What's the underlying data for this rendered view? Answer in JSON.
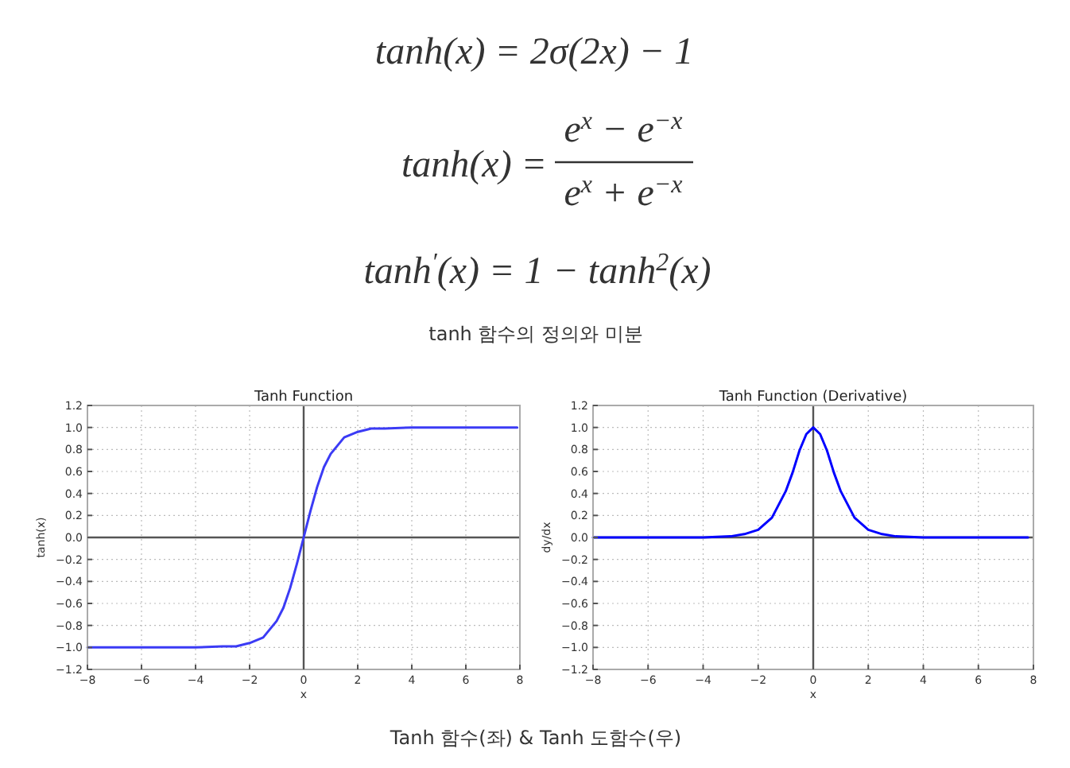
{
  "chart_data": [
    {
      "type": "other",
      "annotations": [
        "tanh(x) = 2σ(2x) − 1",
        "tanh(x) =",
        "e$^{x}$ − e$^{−x}$",
        "e$^{x}$ + e$^{−x}$",
        "tanh$^{′}$(x) = 1 − tanh$^{2}$(x)",
        "tanh 함수의 정의와 미분",
        "Tanh 함수(좌) & Tanh 도함수(우)"
      ]
    },
    {
      "type": "line",
      "title": "Tanh Function",
      "xlabel": "x",
      "ylabel": "tanh(x)",
      "x": [
        -8,
        -6,
        -4,
        -3,
        -2.5,
        -2,
        -1.5,
        -1,
        -0.75,
        -0.5,
        -0.25,
        0,
        0.25,
        0.5,
        0.75,
        1,
        1.5,
        2,
        2.5,
        3,
        4,
        6,
        7.9
      ],
      "series": [
        {
          "color": "#3b3bf5",
          "values": [
            -1,
            -1,
            -1,
            -0.99,
            -0.99,
            -0.96,
            -0.91,
            -0.76,
            -0.64,
            -0.46,
            -0.24,
            0,
            0.24,
            0.46,
            0.64,
            0.76,
            0.91,
            0.96,
            0.99,
            0.99,
            1,
            1,
            1
          ]
        }
      ],
      "xlim": [
        -8,
        8
      ],
      "ylim": [
        -1.2,
        1.2
      ],
      "xticks": [
        {
          "value": -8,
          "label": "−8"
        },
        {
          "value": -6,
          "label": "−6"
        },
        {
          "value": -4,
          "label": "−4"
        },
        {
          "value": -2,
          "label": "−2"
        },
        0,
        2,
        4,
        6,
        8
      ],
      "yticks": [
        {
          "value": -1.2,
          "label": "−1.2"
        },
        {
          "value": -1,
          "label": "−1.0"
        },
        {
          "value": -0.8,
          "label": "−0.8"
        },
        {
          "value": -0.6,
          "label": "−0.6"
        },
        {
          "value": -0.4,
          "label": "−0.4"
        },
        {
          "value": -0.2,
          "label": "−0.2"
        },
        {
          "value": 0,
          "label": "0.0"
        },
        0.2,
        0.4,
        0.6,
        0.8,
        {
          "value": 1,
          "label": "1.0"
        },
        1.2
      ],
      "grid": true
    },
    {
      "type": "line",
      "title": "Tanh Function (Derivative)",
      "xlabel": "x",
      "ylabel": "dy/dx",
      "x": [
        -8,
        -6,
        -4,
        -3,
        -2.5,
        -2,
        -1.5,
        -1,
        -0.75,
        -0.5,
        -0.25,
        0,
        0.25,
        0.5,
        0.75,
        1,
        1.5,
        2,
        2.5,
        3,
        4,
        6,
        7.8
      ],
      "series": [
        {
          "color": "#0000ff",
          "values": [
            0,
            0,
            0,
            0.01,
            0.03,
            0.07,
            0.18,
            0.42,
            0.59,
            0.79,
            0.94,
            1,
            0.94,
            0.79,
            0.59,
            0.42,
            0.18,
            0.07,
            0.03,
            0.01,
            0,
            0,
            0
          ]
        }
      ],
      "xlim": [
        -8,
        8
      ],
      "ylim": [
        -1.2,
        1.2
      ],
      "xticks": [
        {
          "value": -8,
          "label": "−8"
        },
        {
          "value": -6,
          "label": "−6"
        },
        {
          "value": -4,
          "label": "−4"
        },
        {
          "value": -2,
          "label": "−2"
        },
        0,
        2,
        4,
        6,
        8
      ],
      "yticks": [
        {
          "value": -1.2,
          "label": "−1.2"
        },
        {
          "value": -1,
          "label": "−1.0"
        },
        {
          "value": -0.8,
          "label": "−0.8"
        },
        {
          "value": -0.6,
          "label": "−0.6"
        },
        {
          "value": -0.4,
          "label": "−0.4"
        },
        {
          "value": -0.2,
          "label": "−0.2"
        },
        {
          "value": 0,
          "label": "0.0"
        },
        0.2,
        0.4,
        0.6,
        0.8,
        {
          "value": 1,
          "label": "1.0"
        },
        1.2
      ],
      "grid": true
    }
  ]
}
